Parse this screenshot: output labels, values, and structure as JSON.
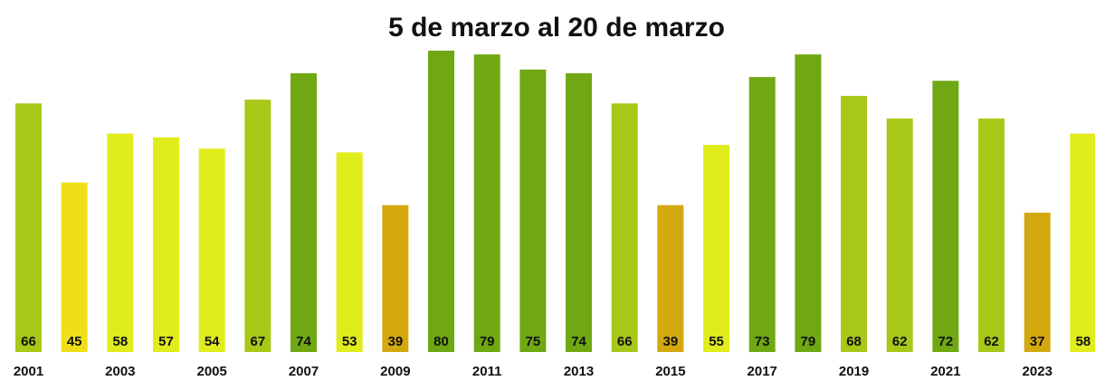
{
  "chart_data": {
    "type": "bar",
    "title": "5 de marzo al 20 de marzo",
    "categories": [
      "2001",
      null,
      "2003",
      null,
      "2005",
      null,
      "2007",
      null,
      "2009",
      null,
      "2011",
      null,
      "2013",
      null,
      "2015",
      null,
      "2017",
      null,
      "2019",
      null,
      "2021",
      null,
      "2023",
      null
    ],
    "values": [
      66,
      45,
      58,
      57,
      54,
      67,
      74,
      53,
      39,
      80,
      79,
      75,
      74,
      66,
      39,
      55,
      73,
      79,
      68,
      62,
      72,
      62,
      37,
      58
    ],
    "colors": [
      "#a8c818",
      "#f0df18",
      "#e0ec1c",
      "#e0ec1c",
      "#e0ec1c",
      "#a8c818",
      "#6fa812",
      "#e0ec1c",
      "#d4a80f",
      "#6fa812",
      "#6fa812",
      "#6fa812",
      "#6fa812",
      "#a8c818",
      "#d4a80f",
      "#e0ec1c",
      "#6fa812",
      "#6fa812",
      "#a8c818",
      "#a8c818",
      "#6fa812",
      "#a8c818",
      "#d4a80f",
      "#e0ec1c"
    ],
    "ylim": [
      0,
      80
    ]
  }
}
